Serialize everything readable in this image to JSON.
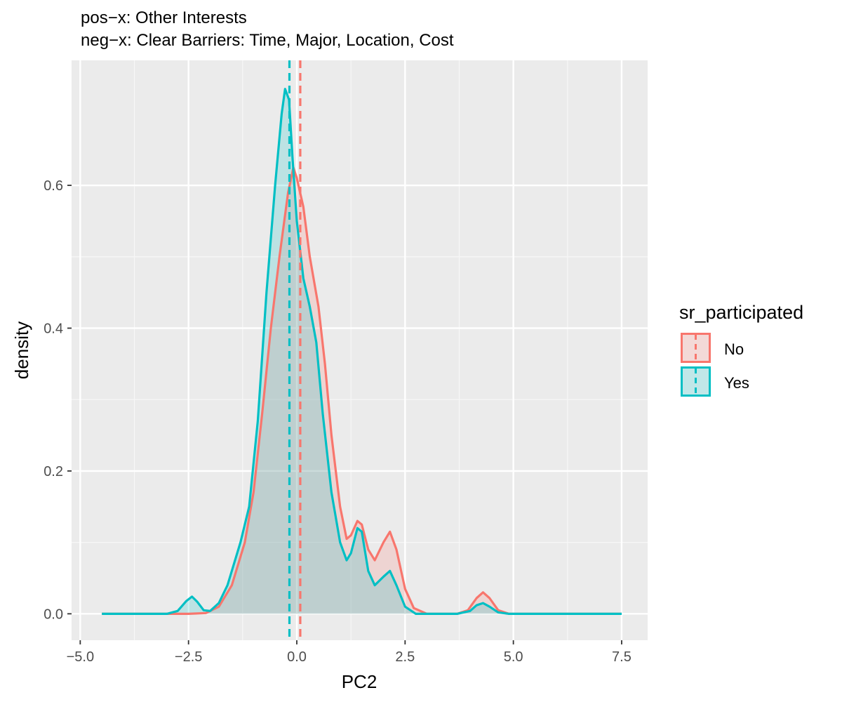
{
  "chart_data": {
    "type": "area",
    "title": "pos−x: Other Interests",
    "subtitle": "neg−x: Clear Barriers: Time, Major, Location, Cost",
    "xlabel": "PC2",
    "ylabel": "density",
    "xlim": [
      -5.2,
      8.1
    ],
    "ylim": [
      -0.037,
      0.775
    ],
    "x_ticks": [
      -5.0,
      -2.5,
      0.0,
      2.5,
      5.0,
      7.5
    ],
    "x_tick_labels": [
      "−5.0",
      "−2.5",
      "0.0",
      "2.5",
      "5.0",
      "7.5"
    ],
    "y_ticks": [
      0.0,
      0.2,
      0.4,
      0.6
    ],
    "y_tick_labels": [
      "0.0",
      "0.2",
      "0.4",
      "0.6"
    ],
    "grid": true,
    "legend": {
      "title": "sr_participated",
      "position": "right",
      "entries": [
        "No",
        "Yes"
      ]
    },
    "series": [
      {
        "name": "No",
        "color": "#F8766D",
        "mean_line_x": 0.08,
        "points": [
          [
            -4.5,
            0.0
          ],
          [
            -2.5,
            0.0
          ],
          [
            -2.1,
            0.001
          ],
          [
            -1.8,
            0.01
          ],
          [
            -1.5,
            0.04
          ],
          [
            -1.2,
            0.1
          ],
          [
            -1.0,
            0.17
          ],
          [
            -0.8,
            0.28
          ],
          [
            -0.6,
            0.4
          ],
          [
            -0.4,
            0.5
          ],
          [
            -0.2,
            0.59
          ],
          [
            -0.08,
            0.625
          ],
          [
            0.0,
            0.61
          ],
          [
            0.15,
            0.57
          ],
          [
            0.3,
            0.5
          ],
          [
            0.5,
            0.43
          ],
          [
            0.65,
            0.35
          ],
          [
            0.8,
            0.25
          ],
          [
            1.0,
            0.15
          ],
          [
            1.15,
            0.105
          ],
          [
            1.25,
            0.11
          ],
          [
            1.4,
            0.13
          ],
          [
            1.5,
            0.125
          ],
          [
            1.65,
            0.09
          ],
          [
            1.8,
            0.075
          ],
          [
            2.0,
            0.1
          ],
          [
            2.15,
            0.115
          ],
          [
            2.3,
            0.09
          ],
          [
            2.5,
            0.035
          ],
          [
            2.7,
            0.008
          ],
          [
            3.0,
            0.0
          ],
          [
            3.7,
            0.0
          ],
          [
            3.95,
            0.005
          ],
          [
            4.15,
            0.022
          ],
          [
            4.3,
            0.03
          ],
          [
            4.45,
            0.022
          ],
          [
            4.65,
            0.005
          ],
          [
            4.9,
            0.0
          ],
          [
            7.5,
            0.0
          ]
        ]
      },
      {
        "name": "Yes",
        "color": "#00BFC4",
        "mean_line_x": -0.17,
        "points": [
          [
            -4.5,
            0.0
          ],
          [
            -3.0,
            0.0
          ],
          [
            -2.75,
            0.004
          ],
          [
            -2.55,
            0.018
          ],
          [
            -2.42,
            0.024
          ],
          [
            -2.3,
            0.017
          ],
          [
            -2.15,
            0.005
          ],
          [
            -2.0,
            0.004
          ],
          [
            -1.8,
            0.015
          ],
          [
            -1.6,
            0.04
          ],
          [
            -1.3,
            0.1
          ],
          [
            -1.1,
            0.15
          ],
          [
            -0.9,
            0.27
          ],
          [
            -0.7,
            0.45
          ],
          [
            -0.5,
            0.6
          ],
          [
            -0.35,
            0.7
          ],
          [
            -0.27,
            0.735
          ],
          [
            -0.18,
            0.72
          ],
          [
            -0.1,
            0.64
          ],
          [
            0.0,
            0.55
          ],
          [
            0.15,
            0.47
          ],
          [
            0.3,
            0.43
          ],
          [
            0.45,
            0.38
          ],
          [
            0.6,
            0.28
          ],
          [
            0.8,
            0.17
          ],
          [
            1.0,
            0.1
          ],
          [
            1.15,
            0.075
          ],
          [
            1.25,
            0.085
          ],
          [
            1.4,
            0.12
          ],
          [
            1.5,
            0.115
          ],
          [
            1.65,
            0.06
          ],
          [
            1.8,
            0.04
          ],
          [
            2.0,
            0.052
          ],
          [
            2.15,
            0.06
          ],
          [
            2.3,
            0.04
          ],
          [
            2.5,
            0.01
          ],
          [
            2.75,
            0.0
          ],
          [
            3.7,
            0.0
          ],
          [
            4.0,
            0.004
          ],
          [
            4.15,
            0.012
          ],
          [
            4.3,
            0.015
          ],
          [
            4.45,
            0.01
          ],
          [
            4.65,
            0.002
          ],
          [
            4.9,
            0.0
          ],
          [
            7.5,
            0.0
          ]
        ]
      }
    ]
  }
}
